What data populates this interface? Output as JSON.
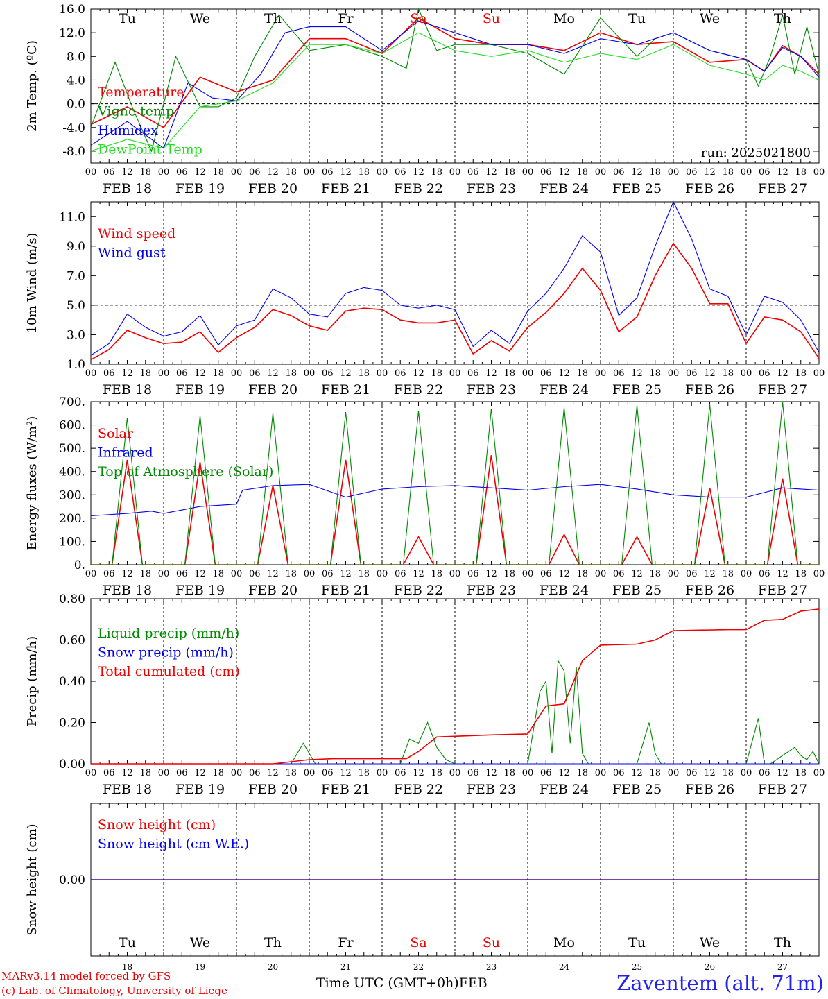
{
  "run_label": "run: 2025021800",
  "footer": {
    "model": "MARv3.14 model forced by GFS",
    "lab": "(c) Lab. of Climatology, University of Liege",
    "time_axis": "Time UTC (GMT+0h)",
    "month": "FEB",
    "station": "Zaventem (alt. 71m)"
  },
  "date_labels": [
    "FEB 18",
    "FEB 19",
    "FEB 20",
    "FEB 21",
    "FEB 22",
    "FEB 23",
    "FEB 24",
    "FEB 25",
    "FEB 26",
    "FEB 27"
  ],
  "day_numbers": [
    "18",
    "19",
    "20",
    "21",
    "22",
    "23",
    "24",
    "25",
    "26",
    "27"
  ],
  "weekdays": [
    "Tu",
    "We",
    "Th",
    "Fr",
    "Sa",
    "Su",
    "Mo",
    "Tu",
    "We",
    "Th"
  ],
  "weekend_color": "#ee0000",
  "hour_ticks": [
    "00",
    "06",
    "12",
    "18"
  ],
  "colors": {
    "red": "#ee0000",
    "green": "#008800",
    "blue": "#0000ee",
    "lightgreen": "#22dd22"
  },
  "chart_data": [
    {
      "type": "line",
      "ylabel": "2m Temp. (ºC)",
      "ylim": [
        -10,
        16
      ],
      "y_ticks": [
        "16.0",
        "12.0",
        "8.0",
        "4.0",
        "0.0",
        "-4.0",
        "-8.0"
      ],
      "x_unit": "hours since FEB 18 00 UTC",
      "series": [
        {
          "name": "Temperature",
          "color": "red",
          "x": [
            0,
            12,
            24,
            36,
            48,
            60,
            72,
            84,
            96,
            108,
            120,
            132,
            144,
            156,
            168,
            180,
            192,
            204,
            216,
            222,
            228,
            234,
            240
          ],
          "y": [
            -3.5,
            -0.5,
            -4,
            4.5,
            2,
            4,
            11,
            11,
            8.5,
            14.5,
            11,
            10,
            10,
            9,
            12,
            10,
            10.5,
            7,
            7.5,
            5.5,
            9.8,
            8,
            5
          ]
        },
        {
          "name": "Vigne temp",
          "color": "green",
          "x": [
            0,
            8,
            14,
            20,
            28,
            36,
            42,
            48,
            54,
            62,
            72,
            84,
            96,
            104,
            108,
            114,
            120,
            132,
            144,
            156,
            168,
            180,
            186,
            192,
            204,
            216,
            220,
            224,
            228,
            232,
            236,
            240
          ],
          "y": [
            -4,
            7,
            -1,
            -8,
            8,
            -0.5,
            -0.5,
            1,
            8,
            15,
            9,
            10,
            8,
            6,
            16,
            9,
            10,
            10,
            8.5,
            5,
            14.5,
            8,
            11,
            12,
            9,
            7.5,
            3,
            8,
            15,
            5,
            13,
            5
          ]
        },
        {
          "name": "Humidex",
          "color": "blue",
          "x": [
            0,
            12,
            24,
            32,
            40,
            48,
            56,
            64,
            72,
            84,
            96,
            108,
            120,
            132,
            144,
            156,
            168,
            180,
            192,
            204,
            216,
            222,
            228,
            234,
            240
          ],
          "y": [
            -7,
            -3,
            -7.5,
            3.5,
            1,
            0.5,
            5,
            12,
            13,
            13,
            9,
            14,
            12,
            10,
            10,
            8.5,
            11,
            10,
            12,
            9,
            7.5,
            5.5,
            9.5,
            8,
            4.5
          ]
        },
        {
          "name": "DewPoint Temp",
          "color": "lightgreen",
          "x": [
            0,
            12,
            24,
            36,
            48,
            60,
            72,
            84,
            96,
            108,
            120,
            132,
            144,
            156,
            168,
            180,
            192,
            204,
            216,
            222,
            228,
            234,
            240
          ],
          "y": [
            -8,
            -6,
            -7.5,
            -0.5,
            0.5,
            3.5,
            10,
            10,
            8.5,
            12,
            9,
            8,
            9,
            7,
            8.5,
            7.5,
            10,
            6.5,
            5,
            4,
            6.5,
            5.5,
            4
          ]
        }
      ]
    },
    {
      "type": "line",
      "ylabel": "10m Wind (m/s)",
      "ylim": [
        1,
        12
      ],
      "y_ticks": [
        "11.0",
        "9.0",
        "7.0",
        "5.0",
        "3.0",
        "1.0"
      ],
      "x_unit": "hours since FEB 18 00 UTC",
      "series": [
        {
          "name": "Wind speed",
          "color": "red",
          "x": [
            0,
            6,
            12,
            18,
            24,
            30,
            36,
            42,
            48,
            54,
            60,
            66,
            72,
            78,
            84,
            90,
            96,
            102,
            108,
            114,
            120,
            126,
            132,
            138,
            144,
            150,
            156,
            162,
            168,
            174,
            180,
            186,
            192,
            198,
            204,
            210,
            216,
            222,
            228,
            234,
            240
          ],
          "y": [
            1.3,
            2,
            3.3,
            2.8,
            2.4,
            2.5,
            3.2,
            1.8,
            2.8,
            3.5,
            4.7,
            4.3,
            3.6,
            3.3,
            4.6,
            4.8,
            4.7,
            4,
            3.8,
            3.8,
            4,
            1.7,
            2.6,
            1.9,
            3.5,
            4.5,
            5.8,
            7.5,
            6,
            3.2,
            4.2,
            7,
            9.2,
            7.5,
            5.1,
            5.1,
            2.4,
            4.2,
            4,
            3.2,
            1.4
          ]
        },
        {
          "name": "Wind gust",
          "color": "blue",
          "x": [
            0,
            6,
            12,
            18,
            24,
            30,
            36,
            42,
            48,
            54,
            60,
            66,
            72,
            78,
            84,
            90,
            96,
            102,
            108,
            114,
            120,
            126,
            132,
            138,
            144,
            150,
            156,
            162,
            168,
            174,
            180,
            186,
            192,
            198,
            204,
            210,
            216,
            222,
            228,
            234,
            240
          ],
          "y": [
            1.6,
            2.4,
            4.4,
            3.5,
            2.9,
            3.2,
            4.3,
            2.3,
            3.6,
            4,
            6.1,
            5.5,
            4.4,
            4.2,
            5.8,
            6.2,
            6,
            5,
            4.8,
            5,
            4.7,
            2.2,
            3.3,
            2.4,
            4.6,
            5.8,
            7.5,
            9.7,
            8.6,
            4.3,
            5.5,
            9,
            12,
            9.5,
            6.1,
            5.6,
            3,
            5.6,
            5.2,
            4,
            1.8
          ]
        }
      ]
    },
    {
      "type": "line",
      "ylabel": "Energy fluxes (W/m²)",
      "ylim": [
        0,
        700
      ],
      "y_ticks": [
        "700.",
        "600.",
        "500.",
        "400.",
        "300.",
        "200.",
        "100.",
        "0."
      ],
      "x_unit": "hours since FEB 18 00 UTC",
      "series": [
        {
          "name": "Solar",
          "color": "red",
          "x": [
            0,
            7,
            12,
            17,
            24,
            31,
            36,
            41,
            48,
            55,
            60,
            65,
            72,
            79,
            84,
            89,
            96,
            103,
            108,
            113,
            120,
            127,
            132,
            137,
            144,
            151,
            156,
            161,
            168,
            175,
            180,
            185,
            192,
            199,
            204,
            209,
            216,
            223,
            228,
            233,
            240
          ],
          "y": [
            0,
            0,
            450,
            0,
            0,
            0,
            440,
            0,
            0,
            0,
            340,
            0,
            0,
            0,
            450,
            0,
            0,
            0,
            120,
            0,
            0,
            0,
            470,
            0,
            0,
            0,
            130,
            0,
            0,
            0,
            120,
            0,
            0,
            0,
            330,
            0,
            0,
            0,
            370,
            0,
            0
          ]
        },
        {
          "name": "Infrared",
          "color": "blue",
          "x": [
            0,
            12,
            20,
            24,
            36,
            48,
            50,
            60,
            72,
            84,
            96,
            108,
            120,
            132,
            144,
            156,
            168,
            180,
            192,
            204,
            216,
            228,
            240
          ],
          "y": [
            210,
            220,
            230,
            220,
            250,
            260,
            320,
            340,
            345,
            290,
            325,
            335,
            340,
            330,
            320,
            335,
            345,
            325,
            300,
            290,
            290,
            330,
            320
          ]
        },
        {
          "name": "Top of Atmosphere (Solar)",
          "color": "green",
          "x": [
            0,
            7,
            12,
            17,
            24,
            31,
            36,
            41,
            48,
            55,
            60,
            65,
            72,
            79,
            84,
            89,
            96,
            103,
            108,
            113,
            120,
            127,
            132,
            137,
            144,
            151,
            156,
            161,
            168,
            175,
            180,
            185,
            192,
            199,
            204,
            209,
            216,
            223,
            228,
            233,
            240
          ],
          "y": [
            0,
            0,
            630,
            0,
            0,
            0,
            640,
            0,
            0,
            0,
            650,
            0,
            0,
            0,
            655,
            0,
            0,
            0,
            660,
            0,
            0,
            0,
            670,
            0,
            0,
            0,
            675,
            0,
            0,
            0,
            685,
            0,
            0,
            0,
            690,
            0,
            0,
            0,
            700,
            0,
            0
          ]
        }
      ]
    },
    {
      "type": "line",
      "ylabel": "Precip (mm/h)",
      "ylim": [
        0,
        0.8
      ],
      "y_ticks": [
        "0.80",
        "0.60",
        "0.40",
        "0.20",
        "0.00"
      ],
      "x_unit": "hours since FEB 18 00 UTC",
      "series": [
        {
          "name": "Liquid precip (mm/h)",
          "color": "green",
          "x": [
            0,
            66,
            70,
            74,
            78,
            102,
            105,
            108,
            111,
            114,
            117,
            120,
            144,
            148,
            150,
            152,
            154,
            156,
            158,
            160,
            162,
            164,
            166,
            180,
            182,
            184,
            186,
            188,
            216,
            220,
            222,
            224,
            232,
            234,
            236,
            238,
            240
          ],
          "y": [
            0,
            0,
            0.1,
            0,
            0,
            0,
            0.12,
            0.1,
            0.2,
            0.08,
            0.02,
            0,
            0,
            0.35,
            0.4,
            0.05,
            0.5,
            0.45,
            0.1,
            0.47,
            0.05,
            0,
            0,
            0,
            0.1,
            0.2,
            0.05,
            0,
            0,
            0.22,
            0,
            0,
            0.08,
            0.04,
            0.02,
            0.06,
            0
          ]
        },
        {
          "name": "Snow precip (mm/h)",
          "color": "blue",
          "x": [
            0,
            240
          ],
          "y": [
            0,
            0
          ]
        },
        {
          "name": "Total cumulated (cm)",
          "color": "red",
          "x": [
            0,
            60,
            72,
            80,
            104,
            108,
            114,
            132,
            144,
            150,
            156,
            162,
            168,
            180,
            186,
            192,
            210,
            216,
            222,
            228,
            234,
            240
          ],
          "y": [
            0,
            0,
            0.02,
            0.025,
            0.025,
            0.06,
            0.13,
            0.14,
            0.145,
            0.28,
            0.29,
            0.5,
            0.575,
            0.58,
            0.6,
            0.645,
            0.65,
            0.65,
            0.695,
            0.7,
            0.74,
            0.75
          ]
        }
      ]
    },
    {
      "type": "line",
      "ylabel": "Snow height (cm)",
      "y_ticks": [
        "0.00"
      ],
      "x_unit": "hours since FEB 18 00 UTC",
      "series": [
        {
          "name": "Snow height (cm)",
          "color": "red",
          "x": [
            0,
            240
          ],
          "y": [
            0,
            0
          ]
        },
        {
          "name": "Snow height (cm W.E.)",
          "color": "blue",
          "x": [
            0,
            240
          ],
          "y": [
            0,
            0
          ]
        }
      ]
    }
  ]
}
